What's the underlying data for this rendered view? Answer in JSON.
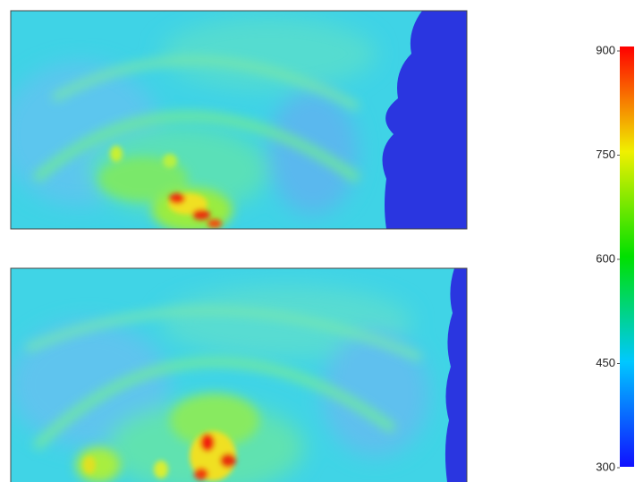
{
  "colorbar": {
    "lim": [
      300,
      900
    ],
    "ticks": [
      300,
      450,
      600,
      750,
      900
    ]
  }
}
